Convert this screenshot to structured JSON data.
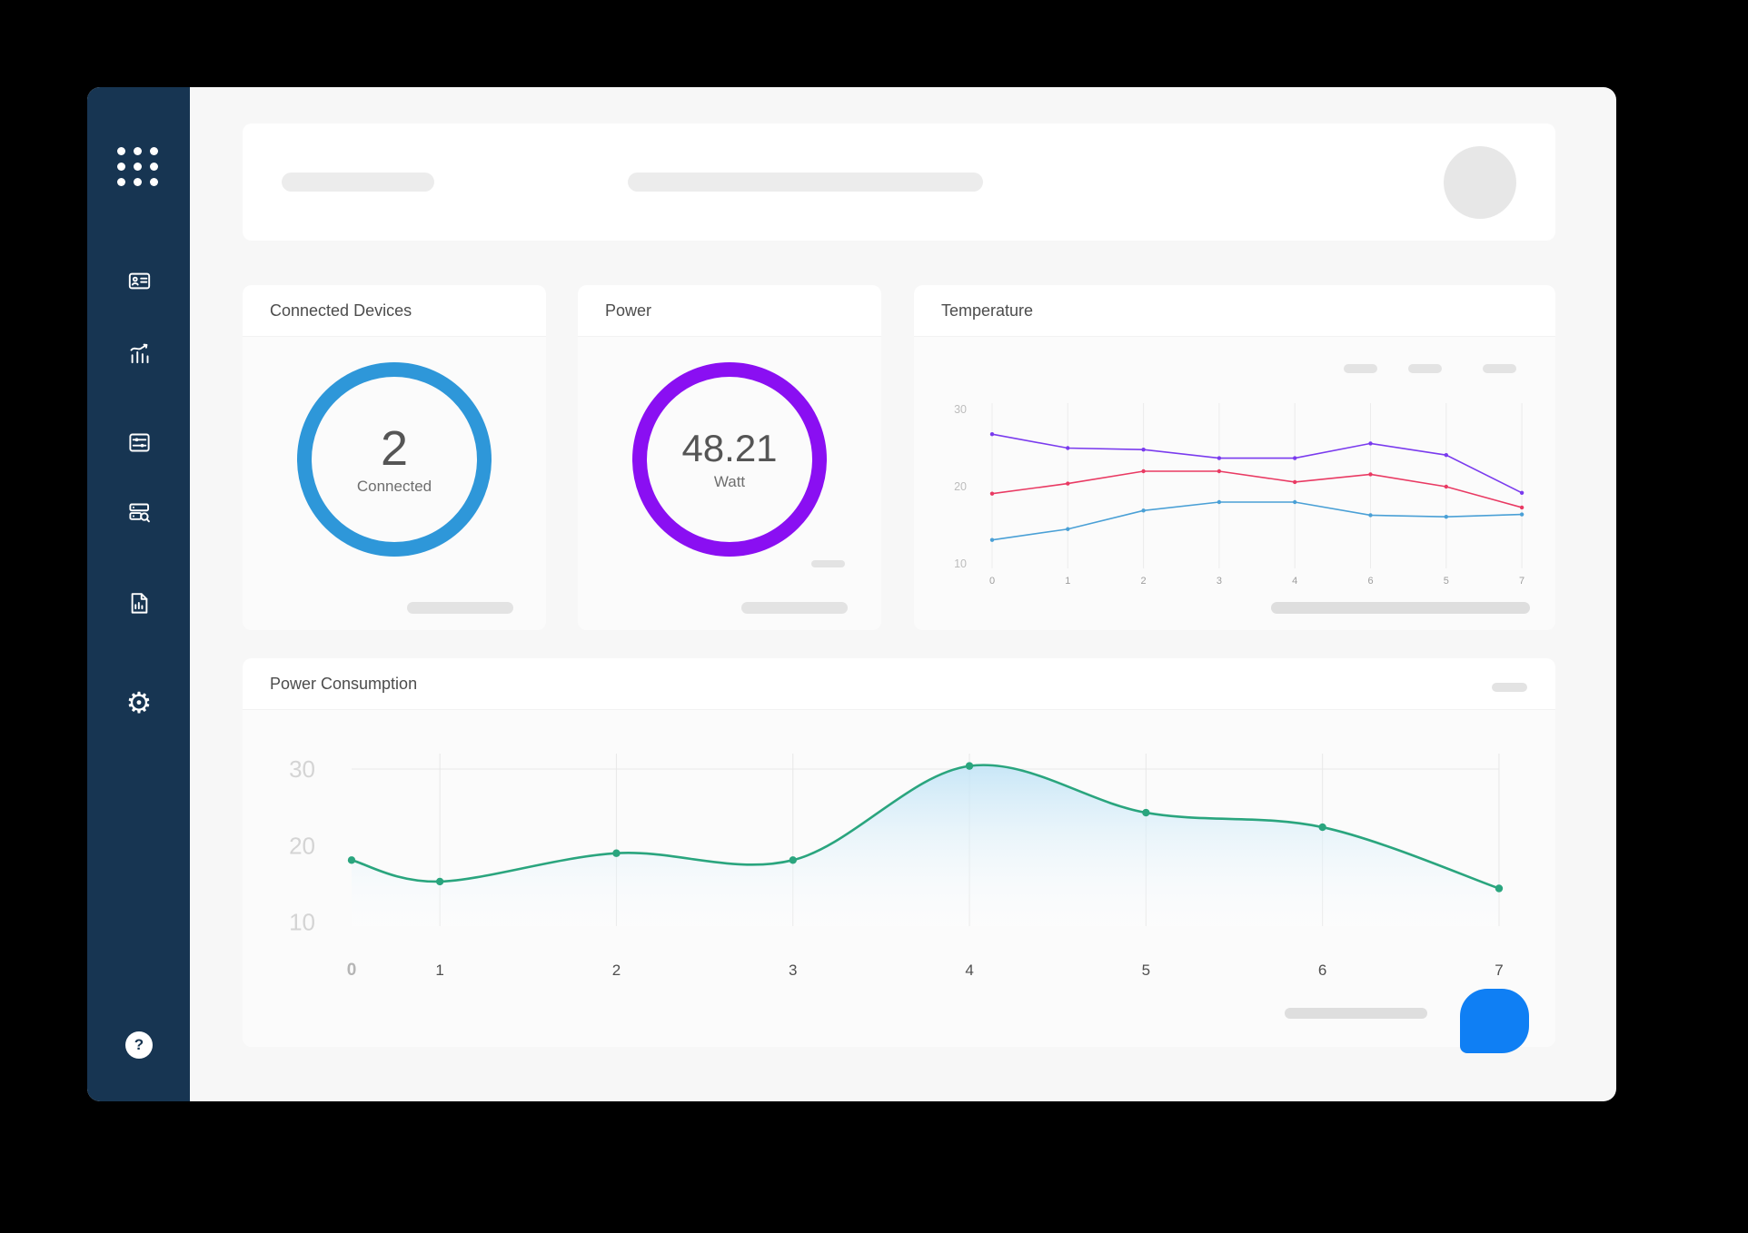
{
  "colors": {
    "sidebar_bg": "#173552",
    "accent_blue": "#2e97d9",
    "accent_purple": "#8a0ff2",
    "accent_teal": "#2aa57e",
    "fab_blue": "#0f7ff4"
  },
  "sidebar": {
    "logo": "dots-grid-logo",
    "items": [
      {
        "icon": "id-card-icon"
      },
      {
        "icon": "analytics-icon"
      },
      {
        "icon": "sliders-icon"
      },
      {
        "icon": "server-search-icon"
      },
      {
        "icon": "report-icon"
      },
      {
        "icon": "settings-gear-icon"
      }
    ],
    "settings_glyph": "⚙",
    "help_label": "?"
  },
  "header": {
    "placeholders": [
      "short-bar",
      "long-bar"
    ],
    "avatar": "avatar-circle"
  },
  "cards": {
    "connected": {
      "title": "Connected Devices",
      "value": "2",
      "unit": "Connected"
    },
    "power": {
      "title": "Power",
      "value": "48.21",
      "unit": "Watt"
    },
    "temperature": {
      "title": "Temperature"
    },
    "consumption": {
      "title": "Power Consumption"
    }
  },
  "chart_data": [
    {
      "type": "line",
      "title": "Temperature",
      "x": [
        "0",
        "1",
        "2",
        "3",
        "4",
        "6",
        "5",
        "7"
      ],
      "series": [
        {
          "name": "temp-series-purple",
          "color": "#7a3bee",
          "values": [
            26.8,
            25.0,
            24.8,
            23.7,
            23.7,
            25.6,
            24.1,
            19.2
          ]
        },
        {
          "name": "temp-series-pink",
          "color": "#e93a63",
          "values": [
            19.1,
            20.4,
            22.0,
            22.0,
            20.6,
            21.6,
            20.0,
            17.3
          ]
        },
        {
          "name": "temp-series-blue",
          "color": "#4aa0d6",
          "values": [
            13.1,
            14.5,
            16.9,
            18.0,
            18.0,
            16.3,
            16.1,
            16.4
          ]
        }
      ],
      "yticks": [
        30,
        20,
        10
      ],
      "ylim": [
        10,
        30
      ],
      "grid": "vertical",
      "legend_position": "top-right-placeholder-pills"
    },
    {
      "type": "area",
      "title": "Power Consumption",
      "x": [
        "0",
        "1",
        "2",
        "3",
        "4",
        "5",
        "6",
        "7"
      ],
      "series": [
        {
          "name": "power-consumption",
          "color": "#2aa57e",
          "values": [
            18.1,
            15.3,
            19.0,
            18.1,
            30.4,
            24.3,
            22.4,
            14.4
          ]
        }
      ],
      "yticks": [
        30,
        20,
        10
      ],
      "ylim": [
        10,
        32
      ],
      "grid": "vertical-plus-top-line",
      "fill": "light-blue-gradient"
    }
  ]
}
